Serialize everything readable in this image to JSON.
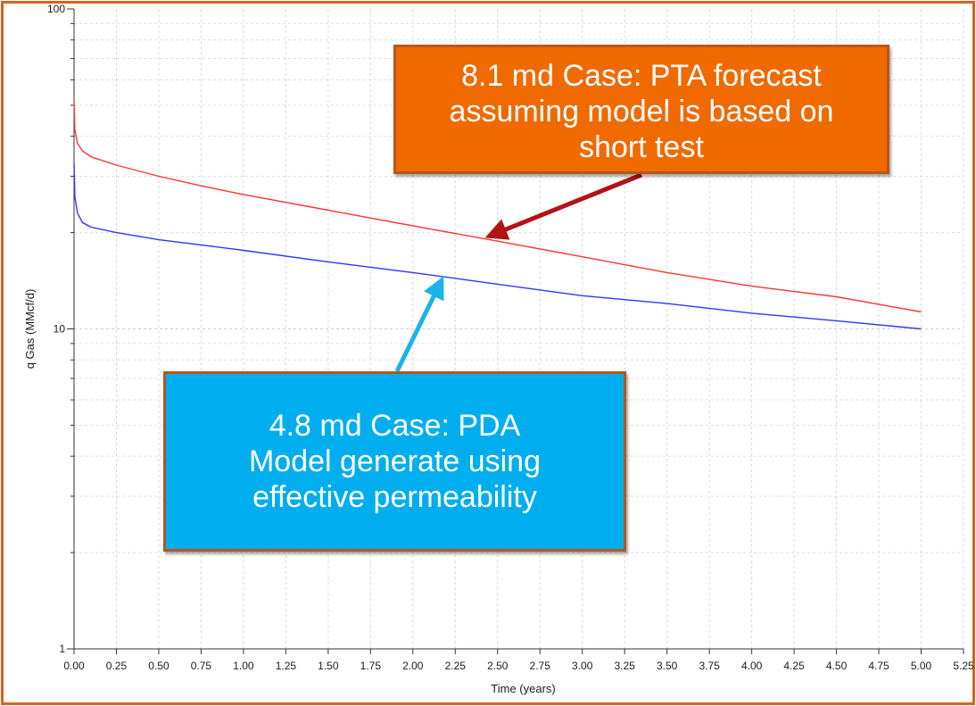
{
  "chart_data": {
    "type": "line",
    "xlabel": "Time (years)",
    "ylabel": "q Gas (MMcf/d)",
    "x_scale": "linear",
    "y_scale": "log",
    "xlim": [
      0,
      5.25
    ],
    "ylim": [
      1,
      100
    ],
    "x_ticks": [
      "0.00",
      "0.25",
      "0.50",
      "0.75",
      "1.00",
      "1.25",
      "1.50",
      "1.75",
      "2.00",
      "2.25",
      "2.50",
      "2.75",
      "3.00",
      "3.25",
      "3.50",
      "3.75",
      "4.00",
      "4.25",
      "4.50",
      "4.75",
      "5.00",
      "5.25"
    ],
    "y_ticks": [
      "1",
      "10",
      "100"
    ],
    "grid": true,
    "series": [
      {
        "name": "8.1 md PTA forecast",
        "color": "#ff3333",
        "x": [
          0,
          0.005,
          0.02,
          0.05,
          0.1,
          0.25,
          0.5,
          0.75,
          1.0,
          1.5,
          2.0,
          2.5,
          3.0,
          3.5,
          4.0,
          4.5,
          5.0
        ],
        "y": [
          52,
          42,
          38,
          36,
          34.5,
          32.5,
          30,
          28,
          26.3,
          23.5,
          21,
          18.8,
          16.8,
          15,
          13.6,
          12.6,
          11.3
        ]
      },
      {
        "name": "4.8 md PDA model",
        "color": "#3333ff",
        "x": [
          0,
          0.005,
          0.02,
          0.05,
          0.1,
          0.25,
          0.5,
          0.75,
          1.0,
          1.5,
          2.0,
          2.5,
          3.0,
          3.5,
          4.0,
          4.5,
          5.0
        ],
        "y": [
          33,
          26,
          23,
          21.5,
          20.8,
          20,
          19,
          18.3,
          17.6,
          16.2,
          15,
          13.8,
          12.7,
          12,
          11.2,
          10.6,
          10
        ]
      }
    ]
  },
  "callouts": {
    "pta": {
      "text": "8.1  md Case: PTA forecast\nassuming model is based on\nshort test",
      "bg_color": "#f06a00",
      "arrow_color": "#b01414",
      "target": {
        "x": 2.45,
        "y": 19.5
      }
    },
    "pda": {
      "text": "4.8 md Case: PDA\nModel generate using\neffective permeability",
      "bg_color": "#00aeef",
      "arrow_color": "#1ab4ea",
      "target": {
        "x": 2.17,
        "y": 14.2
      }
    }
  }
}
